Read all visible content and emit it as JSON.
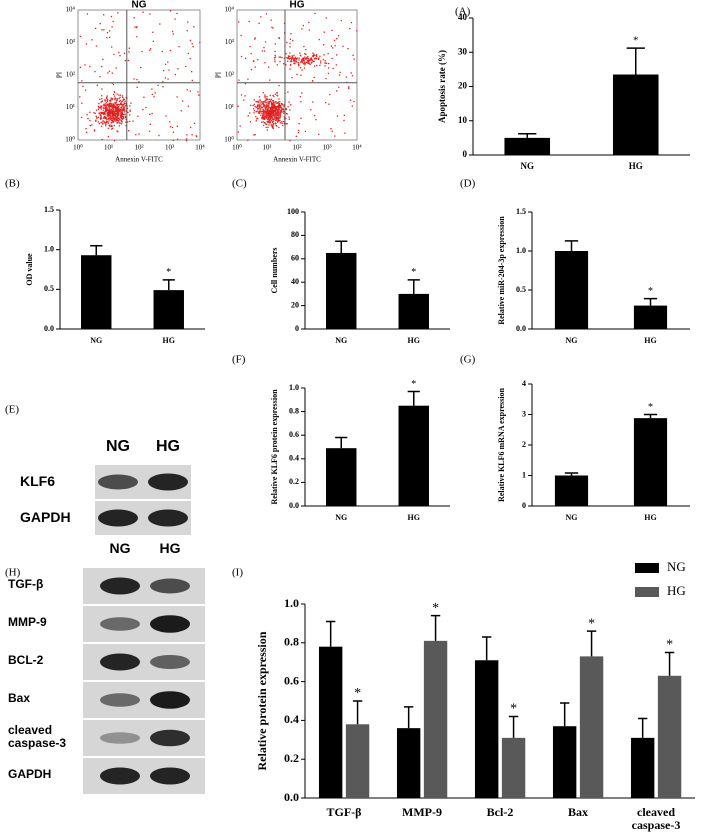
{
  "chart_data": [
    {
      "type": "bar",
      "panel": "(A)",
      "ylabel": "Apoptosis rate (%)",
      "categories": [
        "NG",
        "HG"
      ],
      "values": [
        5,
        23.5
      ],
      "errors": [
        1.2,
        7.7
      ],
      "significance": [
        null,
        "*"
      ],
      "color": "#000000",
      "ylim": [
        0,
        40
      ],
      "yticks": [
        0,
        10,
        20,
        30,
        40
      ]
    },
    {
      "type": "bar",
      "panel": "(B)",
      "ylabel": "OD value",
      "categories": [
        "NG",
        "HG"
      ],
      "values": [
        0.93,
        0.49
      ],
      "errors": [
        0.12,
        0.13
      ],
      "significance": [
        null,
        "*"
      ],
      "color": "#000000",
      "ylim": [
        0,
        1.5
      ],
      "yticks": [
        {
          "value": 0,
          "label": "0.0"
        },
        0.5,
        {
          "value": 1,
          "label": "1.0"
        },
        1.5
      ]
    },
    {
      "type": "bar",
      "panel": "(C)",
      "ylabel": "Cell numbers",
      "categories": [
        "NG",
        "HG"
      ],
      "values": [
        65,
        30
      ],
      "errors": [
        10,
        12
      ],
      "significance": [
        null,
        "*"
      ],
      "color": "#000000",
      "ylim": [
        0,
        100
      ],
      "yticks": [
        0,
        20,
        40,
        60,
        80,
        100
      ]
    },
    {
      "type": "bar",
      "panel": "(D)",
      "ylabel": "Relative miR-204-3p expression",
      "categories": [
        "NG",
        "HG"
      ],
      "values": [
        1.0,
        0.3
      ],
      "errors": [
        0.13,
        0.09
      ],
      "significance": [
        null,
        "*"
      ],
      "color": "#000000",
      "ylim": [
        0,
        1.5
      ],
      "yticks": [
        {
          "value": 0,
          "label": "0.0"
        },
        0.5,
        {
          "value": 1,
          "label": "1.0"
        },
        1.5
      ]
    },
    {
      "type": "bar",
      "panel": "(F)",
      "ylabel": "Relative KLF6 protein expression",
      "categories": [
        "NG",
        "HG"
      ],
      "values": [
        0.49,
        0.85
      ],
      "errors": [
        0.09,
        0.12
      ],
      "significance": [
        null,
        "*"
      ],
      "color": "#000000",
      "ylim": [
        0,
        1
      ],
      "yticks": [
        {
          "value": 0,
          "label": "0.0"
        },
        0.2,
        0.4,
        0.6,
        0.8,
        {
          "value": 1,
          "label": "1.0"
        }
      ]
    },
    {
      "type": "bar",
      "panel": "(G)",
      "ylabel": "Relative KLF6 mRNA expression",
      "categories": [
        "NG",
        "HG"
      ],
      "values": [
        1.0,
        2.88
      ],
      "errors": [
        0.08,
        0.12
      ],
      "significance": [
        null,
        "*"
      ],
      "color": "#000000",
      "ylim": [
        0,
        4
      ],
      "yticks": [
        0,
        1,
        2,
        3,
        4
      ]
    },
    {
      "type": "grouped_bar",
      "panel": "(I)",
      "ylabel": "Relative protein expression",
      "categories": [
        "TGF-β",
        "MMP-9",
        "Bcl-2",
        "Bax",
        "cleaved caspase-3"
      ],
      "series": [
        {
          "name": "NG",
          "color": "#000000",
          "values": [
            0.78,
            0.36,
            0.71,
            0.37,
            0.31
          ],
          "errors": [
            0.13,
            0.11,
            0.12,
            0.12,
            0.1
          ],
          "significance": [
            null,
            null,
            null,
            null,
            null
          ]
        },
        {
          "name": "HG",
          "color": "#595959",
          "values": [
            0.38,
            0.81,
            0.31,
            0.73,
            0.63
          ],
          "errors": [
            0.12,
            0.13,
            0.11,
            0.13,
            0.12
          ],
          "significance": [
            "*",
            "*",
            "*",
            "*",
            "*"
          ]
        }
      ],
      "ylim": [
        0,
        1
      ],
      "yticks": [
        {
          "value": 0,
          "label": "0.0"
        },
        0.2,
        0.4,
        0.6,
        0.8,
        {
          "value": 1,
          "label": "1.0"
        }
      ],
      "legend": "top-right"
    }
  ],
  "flow_cytometry": {
    "xlabel": "Annexin V-FITC",
    "ylabel": "PI",
    "ticks": [
      "10⁰",
      "10¹",
      "10²",
      "10³",
      "10⁴"
    ],
    "panels": [
      "NG",
      "HG"
    ]
  },
  "blots": [
    {
      "panel": "(E)",
      "lanes": [
        "NG",
        "HG"
      ],
      "rows": [
        "KLF6",
        "GAPDH"
      ]
    },
    {
      "panel": "(H)",
      "lanes": [
        "NG",
        "HG"
      ],
      "rows": [
        "TGF-β",
        "MMP-9",
        "BCL-2",
        "Bax",
        "cleaved caspase-3",
        "GAPDH"
      ]
    }
  ]
}
